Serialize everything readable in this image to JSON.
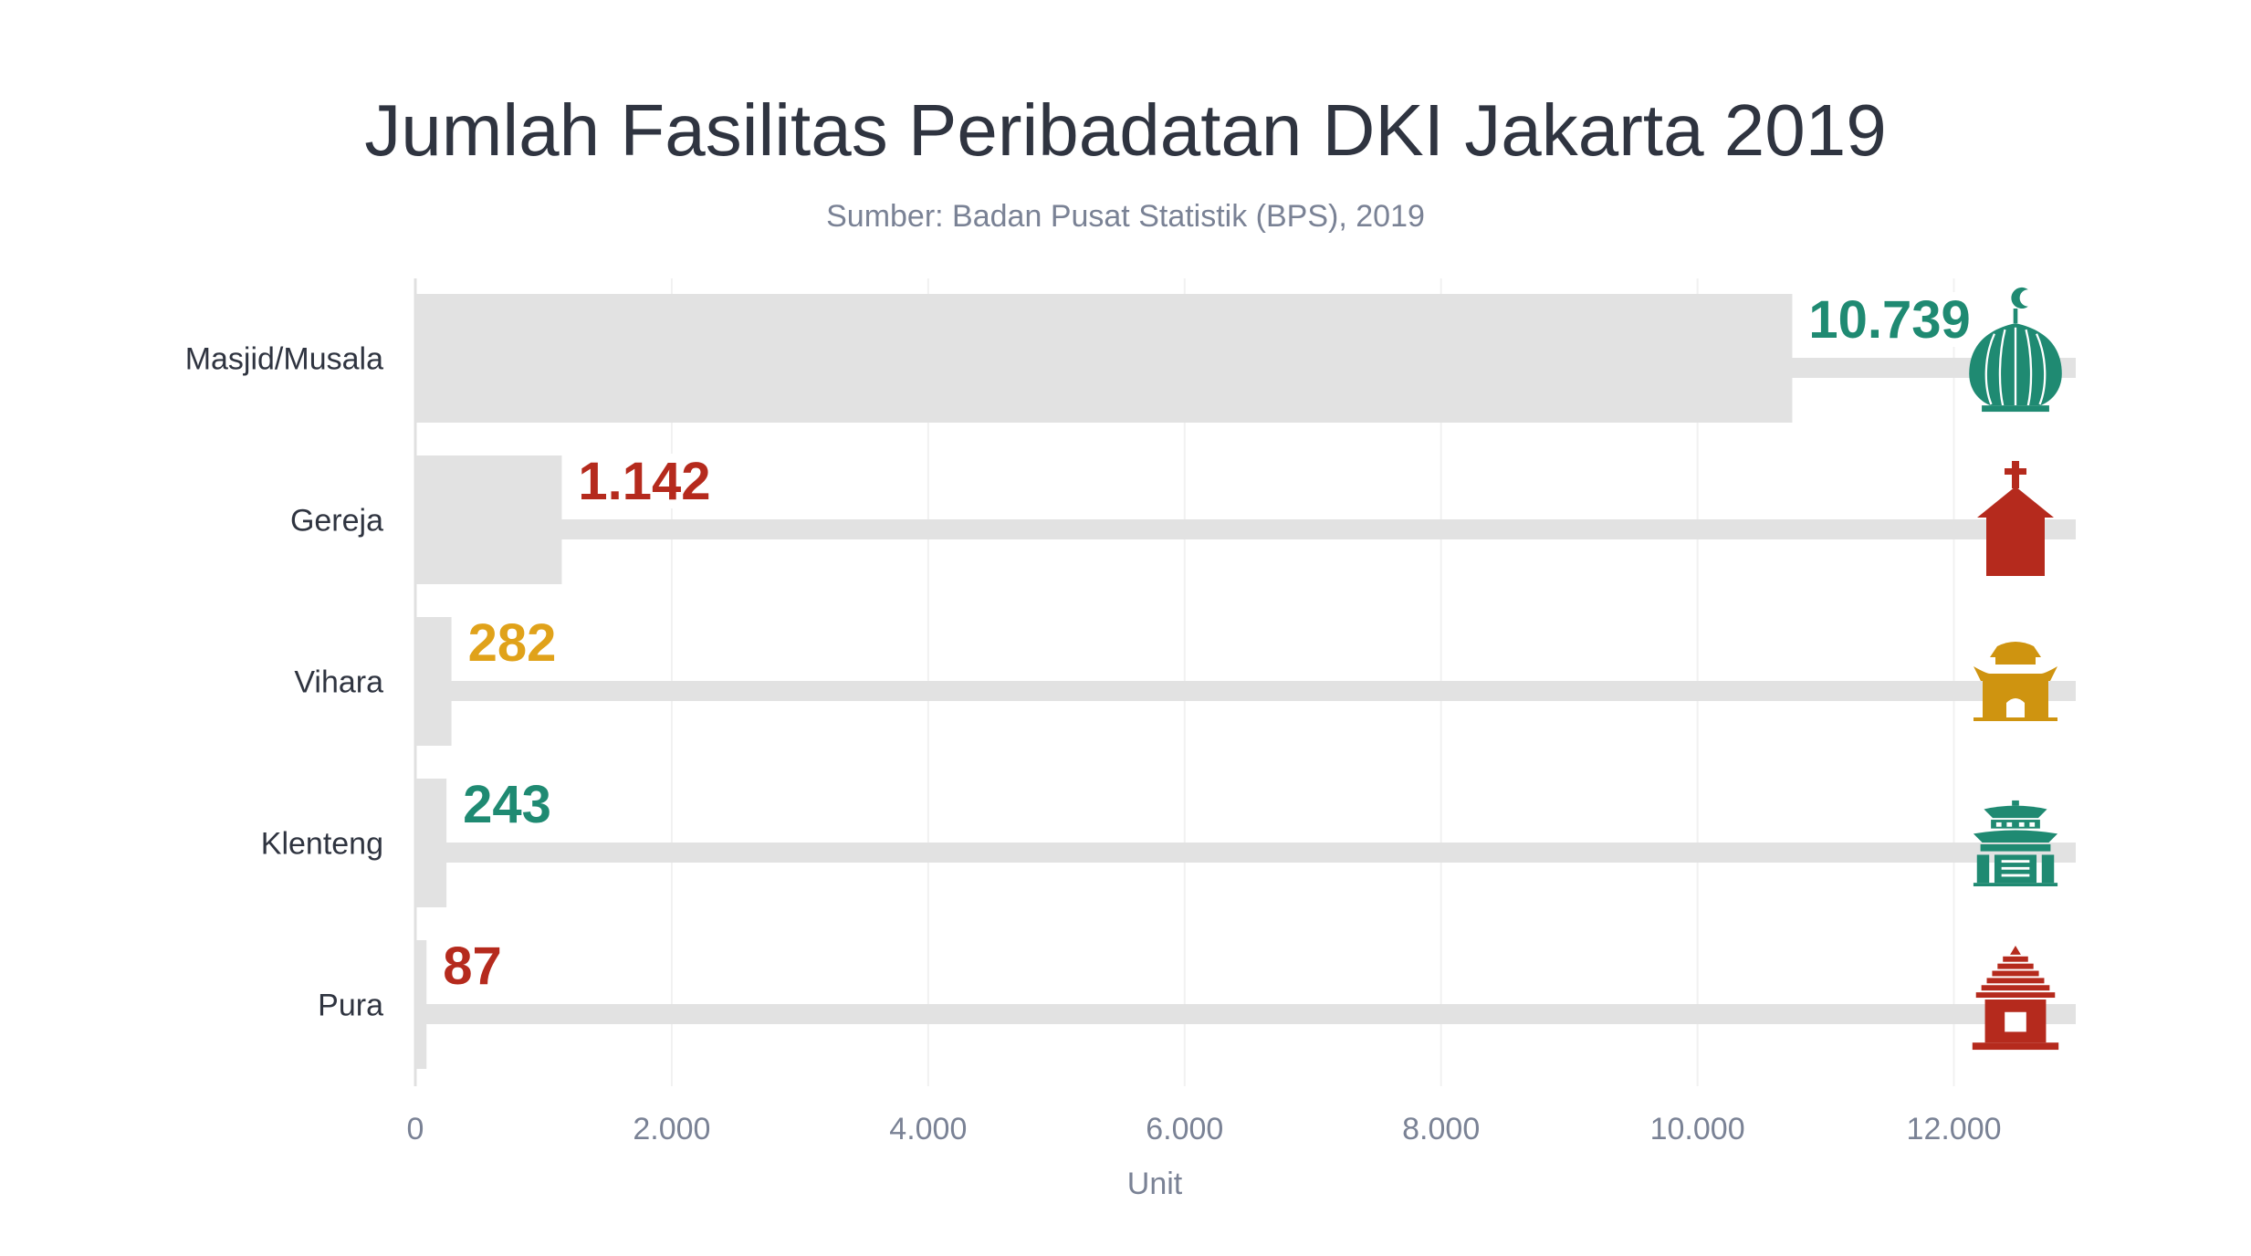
{
  "title": "Jumlah Fasilitas Peribadatan DKI Jakarta 2019",
  "subtitle": "Sumber: Badan Pusat Statistik (BPS), 2019",
  "chart_data": {
    "type": "bar",
    "orientation": "horizontal",
    "categories": [
      "Masjid/Musala",
      "Gereja",
      "Vihara",
      "Klenteng",
      "Pura"
    ],
    "values": [
      10739,
      1142,
      282,
      243,
      87
    ],
    "value_labels": [
      "10.739",
      "1.142",
      "282",
      "243",
      "87"
    ],
    "label_colors": [
      "#1f8a72",
      "#b52a1d",
      "#e0a21a",
      "#1f8a72",
      "#b52a1d"
    ],
    "icons": [
      "mosque-icon",
      "church-icon",
      "vihara-icon",
      "klenteng-icon",
      "pura-icon"
    ],
    "icon_colors": [
      "#1f8a72",
      "#b52a1d",
      "#cf9410",
      "#1f8a72",
      "#b52a1d"
    ],
    "bar_color": "#e2e2e2",
    "xlabel": "Unit",
    "ylabel": "",
    "xlim": [
      0,
      13000
    ],
    "x_ticks": [
      0,
      2000,
      4000,
      6000,
      8000,
      10000,
      12000
    ],
    "x_tick_labels": [
      "0",
      "2.000",
      "4.000",
      "6.000",
      "8.000",
      "10.000",
      "12.000"
    ],
    "grid": true
  }
}
